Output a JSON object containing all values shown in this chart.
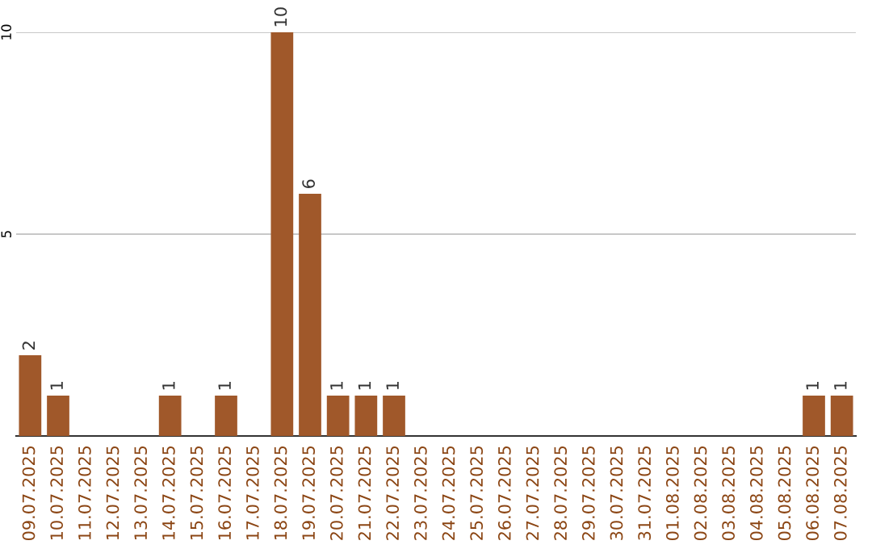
{
  "chart_data": {
    "type": "bar",
    "categories": [
      "09.07.2025",
      "10.07.2025",
      "11.07.2025",
      "12.07.2025",
      "13.07.2025",
      "14.07.2025",
      "15.07.2025",
      "16.07.2025",
      "17.07.2025",
      "18.07.2025",
      "19.07.2025",
      "20.07.2025",
      "21.07.2025",
      "22.07.2025",
      "23.07.2025",
      "24.07.2025",
      "25.07.2025",
      "26.07.2025",
      "27.07.2025",
      "28.07.2025",
      "29.07.2025",
      "30.07.2025",
      "31.07.2025",
      "01.08.2025",
      "02.08.2025",
      "03.08.2025",
      "04.08.2025",
      "05.08.2025",
      "06.08.2025",
      "07.08.2025"
    ],
    "values": [
      2,
      1,
      0,
      0,
      0,
      1,
      0,
      1,
      0,
      10,
      6,
      1,
      1,
      1,
      0,
      0,
      0,
      0,
      0,
      0,
      0,
      0,
      0,
      0,
      0,
      0,
      0,
      0,
      1,
      1
    ],
    "value_labels": [
      "2",
      "1",
      null,
      null,
      null,
      "1",
      null,
      "1",
      null,
      "10",
      "6",
      "1",
      "1",
      "1",
      null,
      null,
      null,
      null,
      null,
      null,
      null,
      null,
      null,
      null,
      null,
      null,
      null,
      null,
      "1",
      "1"
    ],
    "color": "#a0582a",
    "ylim": [
      0,
      10
    ],
    "yticks": [
      5,
      10
    ],
    "grid": "y"
  }
}
